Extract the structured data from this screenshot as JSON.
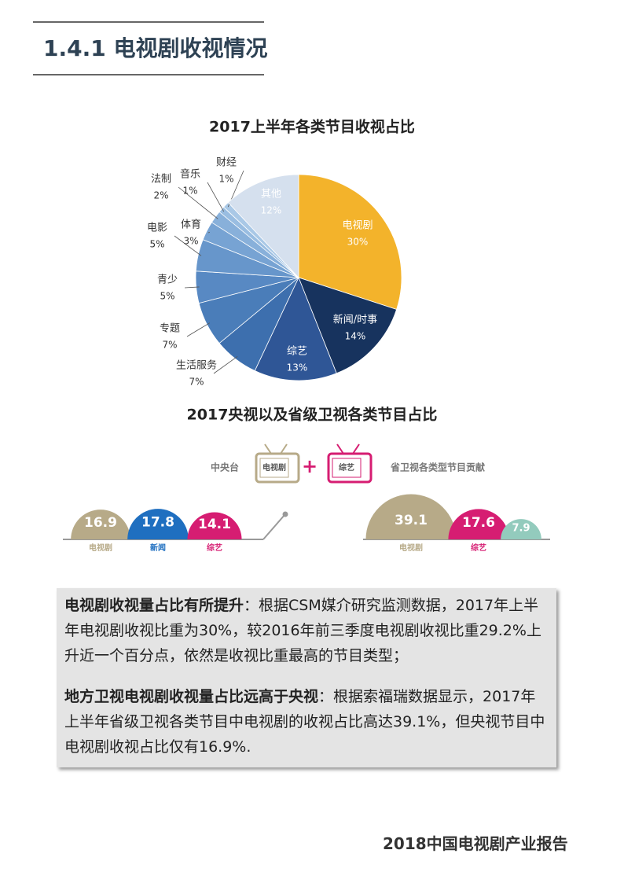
{
  "header": {
    "title": "1.4.1 电视剧收视情况"
  },
  "infographic_title": "2017央视以及省级卫视各类节目占比",
  "chart_data": [
    {
      "type": "pie",
      "title": "2017上半年各类节目收视占比",
      "categories": [
        "电视剧",
        "新闻/时事",
        "综艺",
        "生活服务",
        "专题",
        "青少",
        "电影",
        "体育",
        "法制",
        "音乐",
        "财经",
        "其他"
      ],
      "values": [
        30,
        14,
        13,
        7,
        7,
        5,
        5,
        3,
        2,
        1,
        1,
        12
      ],
      "value_labels": [
        "30%",
        "14%",
        "13%",
        "7%",
        "7%",
        "5%",
        "5%",
        "3%",
        "2%",
        "1%",
        "1%",
        "12%"
      ],
      "colors": [
        "#f3b32b",
        "#17335e",
        "#2f5696",
        "#3d6fae",
        "#4a7db9",
        "#5889c3",
        "#6796cb",
        "#77a3d3",
        "#88b0da",
        "#99bde1",
        "#a9c8e6",
        "#d5e0ee"
      ]
    },
    {
      "type": "semicircle",
      "title": "中央台",
      "icons": [
        "电视剧",
        "综艺"
      ],
      "categories": [
        "电视剧",
        "新闻",
        "综艺"
      ],
      "values": [
        16.9,
        17.8,
        14.1
      ],
      "colors": [
        "#b7aa88",
        "#1f6fc0",
        "#d61d72"
      ]
    },
    {
      "type": "semicircle",
      "title": "省卫视各类型节目贡献",
      "categories": [
        "电视剧",
        "综艺",
        null
      ],
      "values": [
        39.1,
        17.6,
        7.9
      ],
      "colors": [
        "#b7aa88",
        "#d61d72",
        "#93cbbd"
      ]
    }
  ],
  "textbox": {
    "paragraphs": [
      {
        "lead": "电视剧收视量占比有所提升",
        "text": "：根据CSM媒介研究监测数据，2017年上半年电视剧收视比重为30%，较2016年前三季度电视剧收视比重29.2%上升近一个百分点，依然是收视比重最高的节目类型；"
      },
      {
        "lead": "地方卫视电视剧收视量占比远高于央视",
        "text": "：根据索福瑞数据显示，2017年上半年省级卫视各类节目中电视剧的收视占比高达39.1%，但央视节目中电视剧收视占比仅有16.9%."
      }
    ]
  },
  "footer": {
    "text": "2018中国电视剧产业报告"
  }
}
